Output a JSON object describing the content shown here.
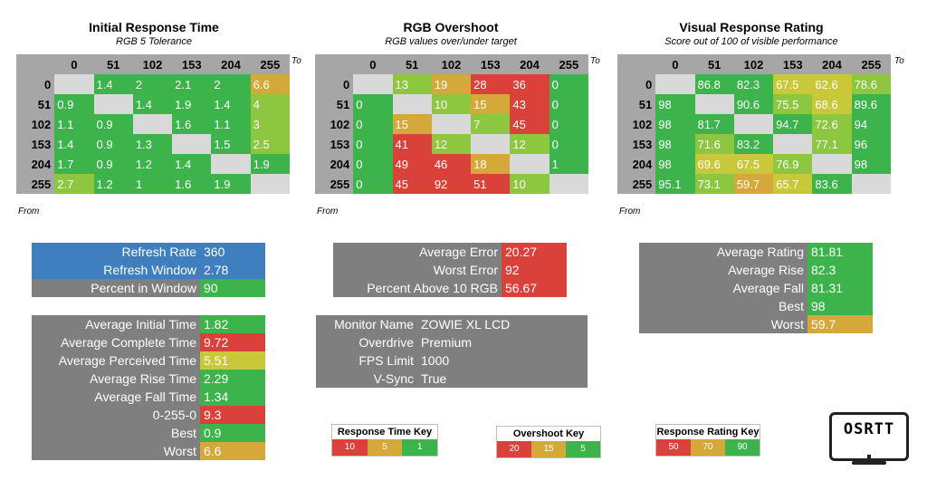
{
  "colors": {
    "green": "#3cb44b",
    "lightgreen": "#8dc63f",
    "yellow": "#c8c83a",
    "amber": "#d4a93a",
    "red": "#d9413a",
    "gray": "#7f7f7f",
    "blue": "#3f7fbf"
  },
  "irt": {
    "title": "Initial Response Time",
    "subtitle": "RGB 5 Tolerance",
    "to": "To",
    "from": "From",
    "cols": [
      "0",
      "51",
      "102",
      "153",
      "204",
      "255"
    ],
    "rows": [
      {
        "h": "0",
        "c": [
          "",
          "1.4",
          "2",
          "2.1",
          "2",
          "6.6"
        ]
      },
      {
        "h": "51",
        "c": [
          "0.9",
          "",
          "1.4",
          "1.9",
          "1.4",
          "4"
        ]
      },
      {
        "h": "102",
        "c": [
          "1.1",
          "0.9",
          "",
          "1.6",
          "1.1",
          "3"
        ]
      },
      {
        "h": "153",
        "c": [
          "1.4",
          "0.9",
          "1.3",
          "",
          "1.5",
          "2.5"
        ]
      },
      {
        "h": "204",
        "c": [
          "1.7",
          "0.9",
          "1.2",
          "1.4",
          "",
          "1.9"
        ]
      },
      {
        "h": "255",
        "c": [
          "2.7",
          "1.2",
          "1",
          "1.6",
          "1.9",
          ""
        ]
      }
    ]
  },
  "ovs": {
    "title": "RGB Overshoot",
    "subtitle": "RGB values over/under target",
    "to": "To",
    "from": "From",
    "cols": [
      "0",
      "51",
      "102",
      "153",
      "204",
      "255"
    ],
    "rows": [
      {
        "h": "0",
        "c": [
          "",
          "13",
          "19",
          "28",
          "36",
          "0"
        ]
      },
      {
        "h": "51",
        "c": [
          "0",
          "",
          "10",
          "15",
          "43",
          "0"
        ]
      },
      {
        "h": "102",
        "c": [
          "0",
          "15",
          "",
          "7",
          "45",
          "0"
        ]
      },
      {
        "h": "153",
        "c": [
          "0",
          "41",
          "12",
          "",
          "12",
          "0"
        ]
      },
      {
        "h": "204",
        "c": [
          "0",
          "49",
          "46",
          "18",
          "",
          "1"
        ]
      },
      {
        "h": "255",
        "c": [
          "0",
          "45",
          "92",
          "51",
          "10",
          ""
        ]
      }
    ]
  },
  "vrr": {
    "title": "Visual Response Rating",
    "subtitle": "Score out of 100 of visible performance",
    "to": "To",
    "from": "From",
    "cols": [
      "0",
      "51",
      "102",
      "153",
      "204",
      "255"
    ],
    "rows": [
      {
        "h": "0",
        "c": [
          "",
          "86.8",
          "82.3",
          "67.5",
          "62.6",
          "78.6"
        ]
      },
      {
        "h": "51",
        "c": [
          "98",
          "",
          "90.6",
          "75.5",
          "68.6",
          "89.6"
        ]
      },
      {
        "h": "102",
        "c": [
          "98",
          "81.7",
          "",
          "94.7",
          "72.6",
          "94"
        ]
      },
      {
        "h": "153",
        "c": [
          "98",
          "71.6",
          "83.2",
          "",
          "77.1",
          "96"
        ]
      },
      {
        "h": "204",
        "c": [
          "98",
          "69.6",
          "67.5",
          "76.9",
          "",
          "98"
        ]
      },
      {
        "h": "255",
        "c": [
          "95.1",
          "73.1",
          "59.7",
          "65.7",
          "83.6",
          ""
        ]
      }
    ]
  },
  "refresh": [
    {
      "l": "Refresh Rate",
      "v": "360"
    },
    {
      "l": "Refresh Window",
      "v": "2.78"
    },
    {
      "l": "Percent in Window",
      "v": "90"
    }
  ],
  "timings": [
    {
      "l": "Average Initial Time",
      "v": "1.82"
    },
    {
      "l": "Average Complete Time",
      "v": "9.72"
    },
    {
      "l": "Average Perceived Time",
      "v": "5.51"
    },
    {
      "l": "Average Rise Time",
      "v": "2.29"
    },
    {
      "l": "Average Fall Time",
      "v": "1.34"
    },
    {
      "l": "0-255-0",
      "v": "9.3"
    },
    {
      "l": "Best",
      "v": "0.9"
    },
    {
      "l": "Worst",
      "v": "6.6"
    }
  ],
  "errors": [
    {
      "l": "Average Error",
      "v": "20.27"
    },
    {
      "l": "Worst Error",
      "v": "92"
    },
    {
      "l": "Percent Above 10 RGB",
      "v": "56.67"
    }
  ],
  "monitor": [
    {
      "l": "Monitor Name",
      "v": "ZOWIE XL LCD"
    },
    {
      "l": "Overdrive",
      "v": "Premium"
    },
    {
      "l": "FPS Limit",
      "v": "1000"
    },
    {
      "l": "V-Sync",
      "v": "True"
    }
  ],
  "ratings": [
    {
      "l": "Average Rating",
      "v": "81.81"
    },
    {
      "l": "Average Rise",
      "v": "82.3"
    },
    {
      "l": "Average Fall",
      "v": "81.31"
    },
    {
      "l": "Best",
      "v": "98"
    },
    {
      "l": "Worst",
      "v": "59.7"
    }
  ],
  "keys": {
    "response": {
      "title": "Response Time Key",
      "items": [
        "10",
        "5",
        "1"
      ]
    },
    "overshoot": {
      "title": "Overshoot Key",
      "items": [
        "20",
        "15",
        "5"
      ]
    },
    "rating": {
      "title": "Response Rating Key",
      "items": [
        "50",
        "70",
        "90"
      ]
    }
  },
  "logo": {
    "text": "OSRTT"
  }
}
